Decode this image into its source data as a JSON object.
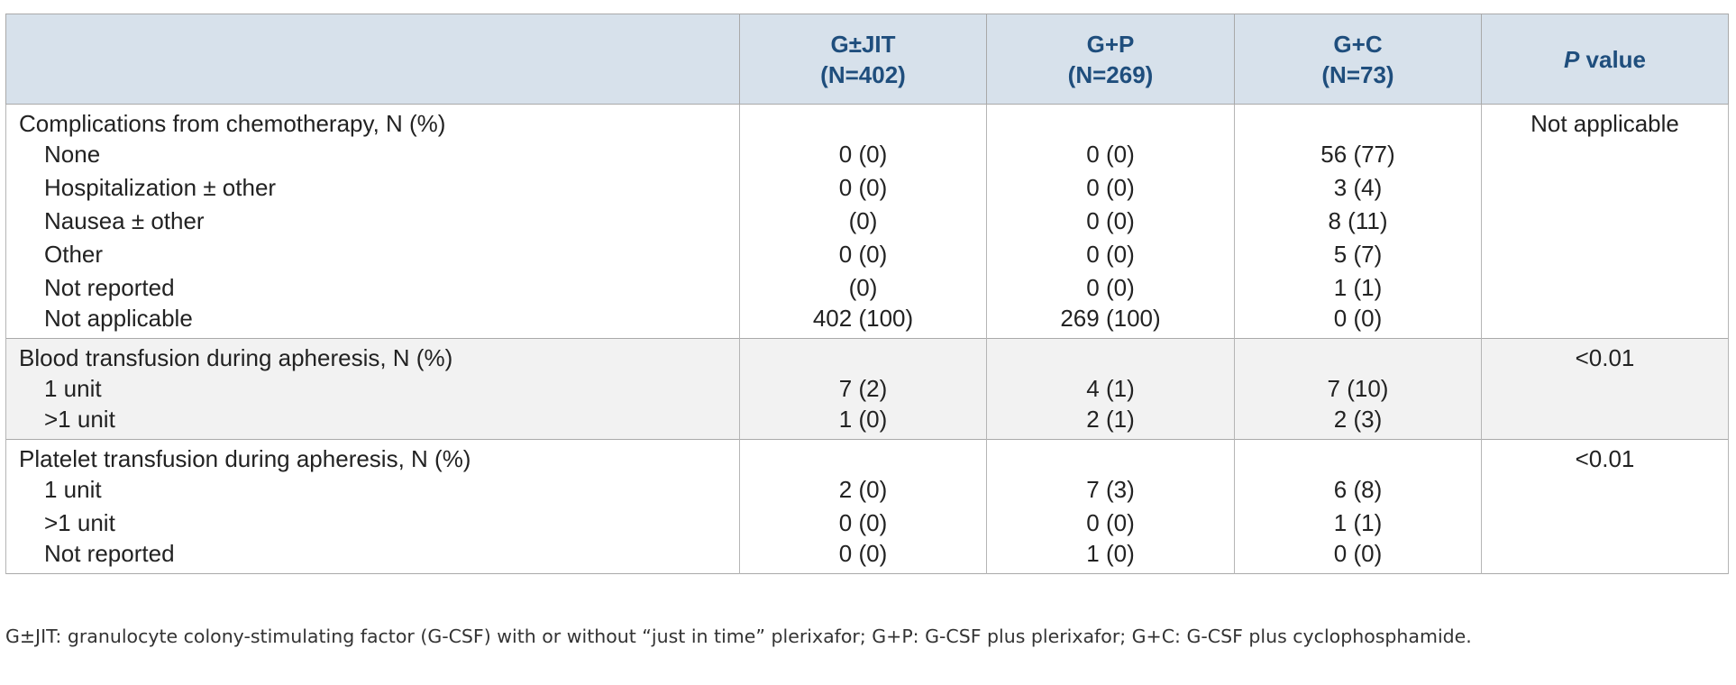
{
  "table": {
    "header": {
      "columns": [
        [
          "G±JIT",
          "(N=402)"
        ],
        [
          "G+P",
          "(N=269)"
        ],
        [
          "G+C",
          "(N=73)"
        ]
      ],
      "pvalue": {
        "emph": "P",
        "text": " value"
      }
    },
    "sections": [
      {
        "title": "Complications from chemotherapy, N (%)",
        "pvalue": "Not applicable",
        "rows": [
          {
            "label": "None",
            "values": [
              "0 (0)",
              "0 (0)",
              "56 (77)"
            ]
          },
          {
            "label": "Hospitalization ± other",
            "values": [
              "0 (0)",
              "0 (0)",
              "3 (4)"
            ]
          },
          {
            "label": "Nausea ± other",
            "values": [
              "(0)",
              "0 (0)",
              "8 (11)"
            ]
          },
          {
            "label": "Other",
            "values": [
              "0 (0)",
              "0 (0)",
              "5 (7)"
            ]
          },
          {
            "label": "Not reported",
            "values": [
              "(0)",
              "0 (0)",
              "1 (1)"
            ]
          },
          {
            "label": "Not applicable",
            "values": [
              "402 (100)",
              "269 (100)",
              "0 (0)"
            ]
          }
        ]
      },
      {
        "title": "Blood transfusion during apheresis, N (%)",
        "pvalue": "<0.01",
        "rows": [
          {
            "label": "1 unit",
            "values": [
              "7 (2)",
              "4 (1)",
              "7 (10)"
            ]
          },
          {
            "label": ">1 unit",
            "values": [
              "1 (0)",
              "2 (1)",
              "2 (3)"
            ]
          }
        ]
      },
      {
        "title": "Platelet transfusion during apheresis, N (%)",
        "pvalue": "<0.01",
        "rows": [
          {
            "label": "1 unit",
            "values": [
              "2 (0)",
              "7 (3)",
              "6 (8)"
            ]
          },
          {
            "label": ">1 unit",
            "values": [
              "0 (0)",
              "0 (0)",
              "1 (1)"
            ]
          },
          {
            "label": "Not reported",
            "values": [
              "0 (0)",
              "1 (0)",
              "0 (0)"
            ]
          }
        ]
      }
    ],
    "footnote": "G±JIT: granulocyte colony-stimulating factor (G-CSF) with or without “just in time” plerixafor; G+P: G-CSF plus plerixafor; G+C: G-CSF plus cyclophosphamide."
  }
}
